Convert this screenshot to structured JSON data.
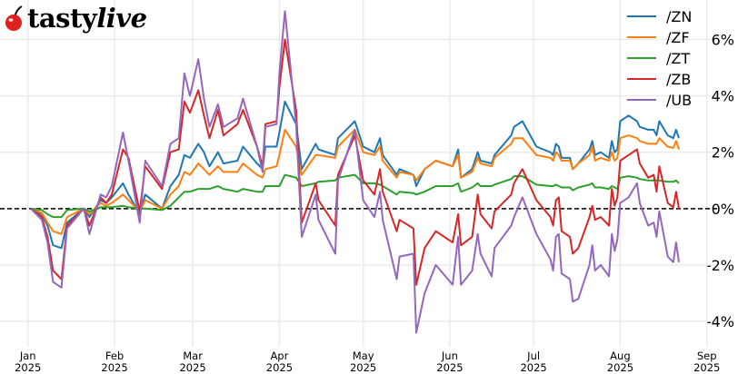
{
  "logo": {
    "text": "tastylive",
    "text_a": "tasty",
    "text_b": "live",
    "cherry_color": "#e0201f"
  },
  "chart_data": {
    "type": "line",
    "title": "",
    "xlabel": "",
    "ylabel": "",
    "xlim": [
      "2024-12-22",
      "2025-09-05"
    ],
    "ylim": [
      -4.9,
      7.4
    ],
    "grid": true,
    "legend_position": "top-right",
    "zero_line": {
      "value": 0,
      "style": "dashed",
      "color": "#000000"
    },
    "x_ticks": [
      {
        "date": "2025-01-01",
        "month": "Jan",
        "year": "2025"
      },
      {
        "date": "2025-02-01",
        "month": "Feb",
        "year": "2025"
      },
      {
        "date": "2025-03-01",
        "month": "Mar",
        "year": "2025"
      },
      {
        "date": "2025-04-01",
        "month": "Apr",
        "year": "2025"
      },
      {
        "date": "2025-05-01",
        "month": "May",
        "year": "2025"
      },
      {
        "date": "2025-06-01",
        "month": "Jun",
        "year": "2025"
      },
      {
        "date": "2025-07-01",
        "month": "Jul",
        "year": "2025"
      },
      {
        "date": "2025-08-01",
        "month": "Aug",
        "year": "2025"
      },
      {
        "date": "2025-09-01",
        "month": "Sep",
        "year": "2025"
      }
    ],
    "y_ticks": [
      {
        "value": -4,
        "label": "-4%"
      },
      {
        "value": -2,
        "label": "-2%"
      },
      {
        "value": 0,
        "label": "0%"
      },
      {
        "value": 2,
        "label": "2%"
      },
      {
        "value": 4,
        "label": "4%"
      },
      {
        "value": 6,
        "label": "6%"
      }
    ],
    "x": [
      "2025-01-02",
      "2025-01-06",
      "2025-01-08",
      "2025-01-10",
      "2025-01-13",
      "2025-01-15",
      "2025-01-21",
      "2025-01-23",
      "2025-01-27",
      "2025-01-29",
      "2025-01-31",
      "2025-02-04",
      "2025-02-06",
      "2025-02-10",
      "2025-02-12",
      "2025-02-18",
      "2025-02-21",
      "2025-02-24",
      "2025-02-26",
      "2025-02-28",
      "2025-03-03",
      "2025-03-05",
      "2025-03-07",
      "2025-03-10",
      "2025-03-12",
      "2025-03-17",
      "2025-03-19",
      "2025-03-24",
      "2025-03-26",
      "2025-03-27",
      "2025-03-31",
      "2025-04-01",
      "2025-04-03",
      "2025-04-07",
      "2025-04-09",
      "2025-04-14",
      "2025-04-15",
      "2025-04-21",
      "2025-04-22",
      "2025-04-28",
      "2025-05-01",
      "2025-05-05",
      "2025-05-07",
      "2025-05-08",
      "2025-05-13",
      "2025-05-14",
      "2025-05-19",
      "2025-05-20",
      "2025-05-23",
      "2025-05-27",
      "2025-06-02",
      "2025-06-04",
      "2025-06-05",
      "2025-06-09",
      "2025-06-11",
      "2025-06-12",
      "2025-06-16",
      "2025-06-17",
      "2025-06-23",
      "2025-06-24",
      "2025-06-27",
      "2025-07-02",
      "2025-07-07",
      "2025-07-08",
      "2025-07-09",
      "2025-07-10",
      "2025-07-11",
      "2025-07-14",
      "2025-07-15",
      "2025-07-17",
      "2025-07-21",
      "2025-07-22",
      "2025-07-23",
      "2025-07-25",
      "2025-07-28",
      "2025-07-29",
      "2025-07-30",
      "2025-07-31",
      "2025-08-01",
      "2025-08-04",
      "2025-08-07",
      "2025-08-08",
      "2025-08-11",
      "2025-08-13",
      "2025-08-14",
      "2025-08-15",
      "2025-08-18",
      "2025-08-20",
      "2025-08-21",
      "2025-08-22"
    ],
    "series": [
      {
        "name": "/ZN",
        "color": "#1f77b4",
        "values": [
          0,
          -0.2,
          -0.6,
          -1.3,
          -1.4,
          -0.5,
          0,
          -0.3,
          0.3,
          0.2,
          0.4,
          0.9,
          0.5,
          -0.2,
          0.5,
          0,
          0.8,
          1.2,
          1.9,
          1.8,
          2.3,
          2.0,
          1.5,
          2.0,
          1.6,
          1.7,
          2.2,
          1.6,
          1.4,
          2.2,
          2.2,
          2.7,
          3.8,
          3.0,
          1.4,
          2.3,
          2.1,
          1.9,
          2.5,
          3.1,
          2.2,
          2.0,
          2.5,
          1.9,
          1.2,
          1.4,
          1.2,
          0.8,
          1.4,
          1.7,
          1.5,
          2.1,
          1.1,
          1.4,
          2.0,
          1.7,
          1.6,
          1.9,
          2.6,
          2.9,
          3.1,
          2.2,
          2.0,
          1.9,
          2.3,
          2.2,
          1.8,
          1.8,
          1.4,
          1.6,
          2.1,
          2.4,
          1.9,
          2.0,
          1.8,
          2.4,
          2.0,
          2.1,
          3.1,
          3.3,
          3.1,
          2.9,
          2.8,
          2.8,
          2.6,
          3.1,
          2.6,
          2.5,
          2.8,
          2.5
        ]
      },
      {
        "name": "/ZF",
        "color": "#ff7f0e",
        "values": [
          0,
          -0.15,
          -0.5,
          -0.8,
          -0.9,
          -0.3,
          0,
          -0.2,
          0.2,
          0.1,
          0.2,
          0.5,
          0.3,
          -0.1,
          0.3,
          0,
          0.5,
          0.8,
          1.3,
          1.2,
          1.6,
          1.4,
          1.2,
          1.5,
          1.3,
          1.3,
          1.6,
          1.2,
          1.1,
          1.4,
          1.5,
          1.9,
          2.8,
          2.2,
          1.2,
          1.9,
          1.9,
          1.8,
          2.2,
          2.8,
          2.0,
          1.9,
          2.2,
          1.7,
          1.1,
          1.3,
          1.2,
          1.0,
          1.4,
          1.7,
          1.5,
          1.9,
          1.1,
          1.3,
          1.8,
          1.6,
          1.5,
          1.8,
          2.3,
          2.5,
          2.5,
          1.9,
          1.8,
          1.7,
          2.0,
          1.9,
          1.7,
          1.7,
          1.4,
          1.6,
          1.9,
          2.2,
          1.7,
          1.8,
          1.7,
          2.0,
          1.7,
          1.8,
          2.5,
          2.6,
          2.5,
          2.4,
          2.3,
          2.3,
          2.3,
          2.5,
          2.2,
          2.15,
          2.4,
          2.1
        ]
      },
      {
        "name": "/ZT",
        "color": "#2ca02c",
        "values": [
          0,
          -0.05,
          -0.2,
          -0.3,
          -0.3,
          -0.05,
          0,
          -0.1,
          0.05,
          0.05,
          0.05,
          0.1,
          0.05,
          0,
          0,
          -0.05,
          0.1,
          0.4,
          0.6,
          0.6,
          0.7,
          0.7,
          0.7,
          0.8,
          0.7,
          0.6,
          0.7,
          0.6,
          0.6,
          0.8,
          0.8,
          0.8,
          1.2,
          1.1,
          0.8,
          0.9,
          0.95,
          1.0,
          1.1,
          1.2,
          0.9,
          0.9,
          0.85,
          0.8,
          0.5,
          0.6,
          0.55,
          0.5,
          0.6,
          0.8,
          0.8,
          0.9,
          0.6,
          0.75,
          0.9,
          0.8,
          0.8,
          0.85,
          1.05,
          1.15,
          1.15,
          0.85,
          0.8,
          0.8,
          0.85,
          0.8,
          0.75,
          0.75,
          0.65,
          0.75,
          0.85,
          0.9,
          0.75,
          0.75,
          0.7,
          0.8,
          0.75,
          0.7,
          1.1,
          1.15,
          1.1,
          1.05,
          1.0,
          1.0,
          1.0,
          1.0,
          0.95,
          0.95,
          1.0,
          0.9
        ]
      },
      {
        "name": "/ZB",
        "color": "#d62728",
        "values": [
          0,
          -0.3,
          -1.0,
          -2.2,
          -2.5,
          -0.6,
          0,
          -0.6,
          0.4,
          0.2,
          0.5,
          2.1,
          1.8,
          -0.1,
          1.5,
          0.7,
          2.0,
          2.1,
          3.8,
          3.4,
          4.2,
          3.3,
          2.5,
          3.5,
          2.6,
          3.0,
          3.5,
          2.2,
          1.5,
          3.0,
          3.1,
          4.3,
          6.0,
          3.5,
          -0.5,
          0.9,
          0.3,
          -0.6,
          1.2,
          2.6,
          1.0,
          0.5,
          1.4,
          0.6,
          -0.8,
          -0.4,
          -0.7,
          -2.7,
          -1.4,
          -0.8,
          -1.2,
          -0.2,
          -1.3,
          -1.0,
          0.5,
          -0.2,
          -0.7,
          -0.1,
          0.5,
          0.9,
          1.4,
          0.3,
          -0.3,
          -0.6,
          0.3,
          0.4,
          -0.8,
          -1.0,
          -1.6,
          -1.4,
          -0.3,
          0.1,
          -0.4,
          -0.3,
          -0.6,
          0.7,
          0.1,
          0.4,
          1.7,
          1.9,
          2.1,
          1.6,
          1.1,
          1.2,
          0.6,
          1.5,
          0.2,
          0.05,
          0.6,
          0.0
        ]
      },
      {
        "name": "/UB",
        "color": "#9467bd",
        "values": [
          0,
          -0.4,
          -1.2,
          -2.6,
          -2.8,
          -0.7,
          0,
          -0.9,
          0.5,
          0.4,
          0.8,
          2.7,
          1.7,
          -0.5,
          1.7,
          0.8,
          2.3,
          2.5,
          4.8,
          4.0,
          5.3,
          3.9,
          2.9,
          3.7,
          2.9,
          3.2,
          3.9,
          2.2,
          1.3,
          2.9,
          3.0,
          4.8,
          7.0,
          3.0,
          -1.0,
          0.5,
          -0.4,
          -1.6,
          1.0,
          2.8,
          0.3,
          -0.3,
          0.6,
          -0.4,
          -2.5,
          -1.7,
          -1.6,
          -4.4,
          -3.0,
          -2.0,
          -2.7,
          -1.0,
          -2.7,
          -2.2,
          -0.9,
          -1.6,
          -2.4,
          -1.4,
          -0.6,
          -0.3,
          0.4,
          -0.9,
          -1.8,
          -2.2,
          -1.0,
          -0.9,
          -2.3,
          -2.5,
          -3.3,
          -3.2,
          -2.0,
          -1.3,
          -2.2,
          -2.0,
          -2.4,
          -0.9,
          -1.5,
          -1.1,
          0.2,
          0.4,
          0.9,
          0.2,
          -0.6,
          -0.5,
          -1.0,
          -0.1,
          -1.7,
          -1.9,
          -1.2,
          -1.9
        ]
      }
    ]
  }
}
